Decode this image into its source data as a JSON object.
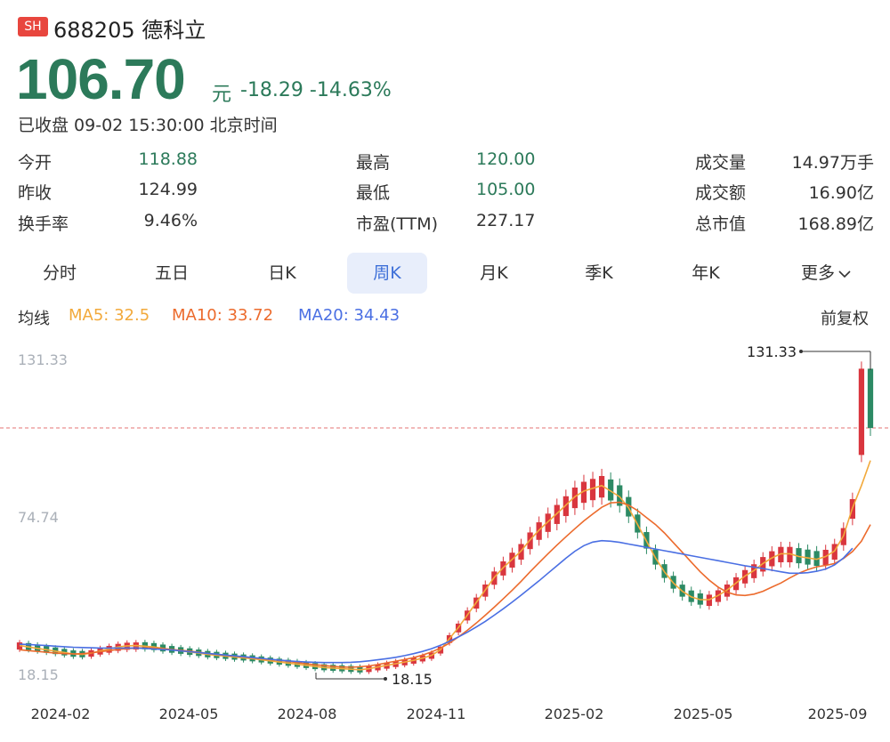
{
  "header": {
    "exchange_badge": "SH",
    "code_name": "688205 德科立",
    "price": "106.70",
    "unit": "元",
    "change": "-18.29 -14.63%",
    "status": "已收盘 09-02 15:30:00 北京时间"
  },
  "stats": {
    "col1": [
      {
        "label": "今开",
        "value": "118.88"
      },
      {
        "label": "昨收",
        "value": "124.99"
      },
      {
        "label": "换手率",
        "value": "9.46%"
      }
    ],
    "col2": [
      {
        "label": "最高",
        "value": "120.00"
      },
      {
        "label": "最低",
        "value": "105.00"
      },
      {
        "label": "市盈(TTM)",
        "value": "227.17"
      }
    ],
    "col3": [
      {
        "label": "成交量",
        "value": "14.97万手"
      },
      {
        "label": "成交额",
        "value": "16.90亿"
      },
      {
        "label": "总市值",
        "value": "168.89亿"
      }
    ]
  },
  "tabs": [
    "分时",
    "五日",
    "日K",
    "周K",
    "月K",
    "季K",
    "年K",
    "更多"
  ],
  "active_tab": "周K",
  "ma": {
    "label": "均线",
    "ma5": "MA5: 32.5",
    "ma10": "MA10: 33.72",
    "ma20": "MA20: 34.43",
    "adjust": "前复权"
  },
  "colors": {
    "up": "#d9363e",
    "down": "#2c8a64",
    "ma5": "#f2a93b",
    "ma10": "#ec6b2d",
    "ma20": "#4a6fe3",
    "ref_line": "#e57373"
  },
  "chart_data": {
    "type": "candlestick",
    "y_ticks": [
      "131.33",
      "74.74",
      "18.15"
    ],
    "ylim": [
      18.15,
      131.33
    ],
    "x_ticks": [
      "2024-02",
      "2024-05",
      "2024-08",
      "2024-11",
      "2025-02",
      "2025-05",
      "2025-09"
    ],
    "max_label": "131.33",
    "min_label": "18.15",
    "ref_price": 106.7,
    "ma_lines": {
      "ma5": [
        28.5,
        28,
        27.5,
        27,
        26.5,
        26,
        25.5,
        25.3,
        25.8,
        26.6,
        27.3,
        28,
        28.4,
        28.5,
        28.3,
        28,
        27.5,
        27,
        26.6,
        26.2,
        25.8,
        25.3,
        25,
        24.7,
        24.4,
        24.1,
        23.8,
        23.4,
        23,
        22.6,
        22.2,
        21.8,
        21.4,
        21,
        20.6,
        20.4,
        20.2,
        20,
        19.8,
        20.2,
        20.8,
        21.4,
        22,
        22.6,
        23.2,
        24,
        25,
        27,
        31,
        35,
        39.5,
        44,
        48.5,
        53,
        56.5,
        59.5,
        62.5,
        66.5,
        70,
        73,
        76,
        79,
        82,
        84,
        85,
        86,
        84,
        82,
        78,
        72,
        66,
        60,
        55,
        51,
        48,
        46,
        45,
        45,
        46.5,
        48.5,
        51,
        53.5,
        55.5,
        58,
        60,
        61.5,
        61.5,
        60.5,
        60,
        59.5,
        60.5,
        62.5,
        68,
        78,
        86,
        95
      ],
      "ma10": [
        27,
        26.7,
        26.4,
        26.1,
        25.8,
        25.6,
        25.5,
        25.6,
        25.9,
        26.3,
        26.7,
        27.1,
        27.4,
        27.6,
        27.7,
        27.6,
        27.4,
        27.1,
        26.8,
        26.5,
        26.1,
        25.7,
        25.3,
        25,
        24.7,
        24.4,
        24.1,
        23.8,
        23.5,
        23.2,
        22.8,
        22.4,
        22,
        21.6,
        21.3,
        21,
        20.8,
        20.7,
        20.9,
        21.2,
        21.7,
        22.3,
        22.9,
        23.5,
        24.2,
        25.1,
        26.2,
        27.6,
        29.4,
        31.6,
        34,
        36.6,
        39.4,
        42.3,
        45.3,
        48.4,
        51.6,
        55,
        58.3,
        61.5,
        64.6,
        67.6,
        70.5,
        73.3,
        75.8,
        78.2,
        79.8,
        80,
        79,
        77,
        74.5,
        72,
        69,
        65.5,
        62,
        58.5,
        55,
        52,
        49.5,
        47.7,
        46.7,
        46.5,
        47,
        48,
        49.5,
        51,
        52.8,
        54.5,
        55.8,
        56.8,
        57.3,
        58,
        59.8,
        62.3,
        66,
        72
      ],
      "ma20": [
        29,
        28.9,
        28.7,
        28.5,
        28.3,
        28.1,
        27.9,
        27.8,
        27.7,
        27.6,
        27.6,
        27.6,
        27.6,
        27.6,
        27.5,
        27.3,
        27.1,
        26.9,
        26.6,
        26.3,
        26,
        25.7,
        25.4,
        25.1,
        24.8,
        24.5,
        24.2,
        23.9,
        23.6,
        23.3,
        23,
        22.8,
        22.6,
        22.5,
        22.4,
        22.4,
        22.4,
        22.5,
        22.7,
        23,
        23.4,
        23.8,
        24.3,
        24.9,
        25.6,
        26.4,
        27.4,
        28.6,
        30,
        31.6,
        33.3,
        35.2,
        37.2,
        39.4,
        41.7,
        44.1,
        46.6,
        49.2,
        51.8,
        54.5,
        57.2,
        59.9,
        62.4,
        64.4,
        65.7,
        66.2,
        66,
        65.6,
        65,
        64.4,
        63.8,
        63.2,
        62.6,
        62,
        61.4,
        60.8,
        60.2,
        59.6,
        59,
        58.4,
        57.8,
        57.2,
        56.7,
        56.2,
        55.6,
        55,
        54.5,
        54.5,
        54.7,
        55.2,
        56,
        57.5,
        60,
        63.5
      ]
    }
  }
}
